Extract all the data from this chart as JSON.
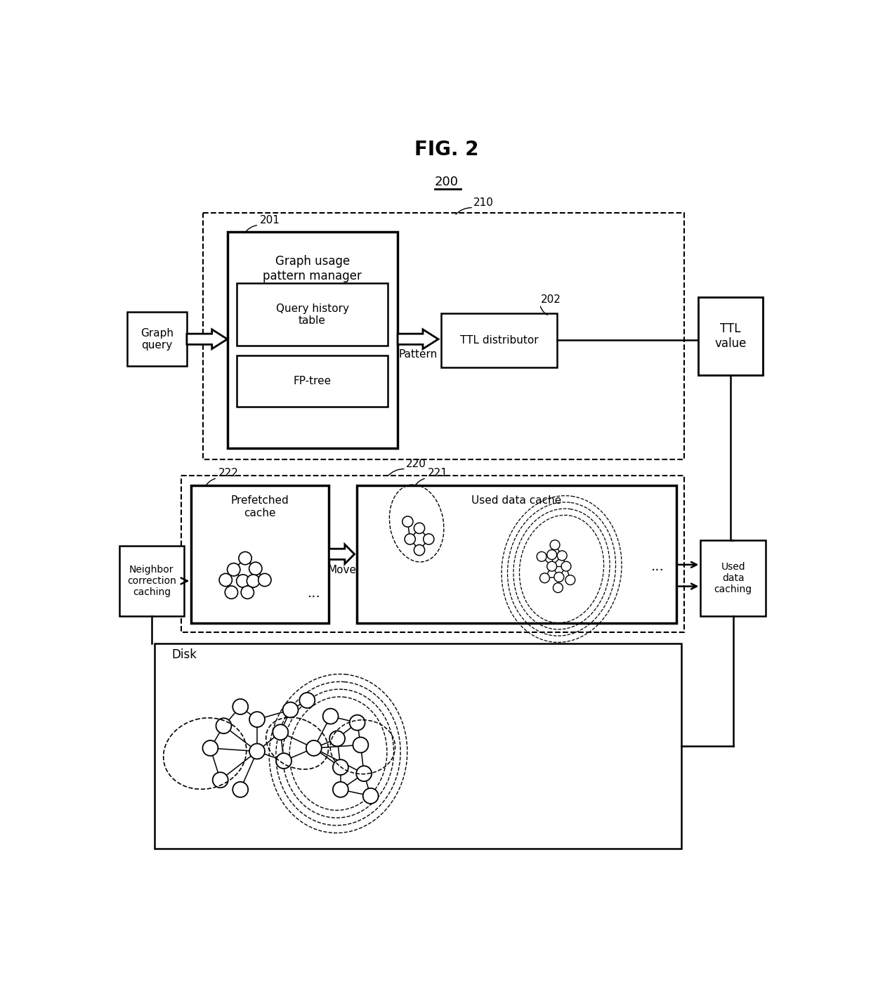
{
  "title": "FIG. 2",
  "ref_200": "200",
  "ref_210": "210",
  "ref_201": "201",
  "ref_202": "202",
  "ref_220": "220",
  "ref_221": "221",
  "ref_222": "222",
  "label_graph_query": "Graph\nquery",
  "label_graph_usage": "Graph usage\npattern manager",
  "label_query_history": "Query history\ntable",
  "label_fp_tree": "FP-tree",
  "label_pattern": "Pattern",
  "label_ttl_dist": "TTL distributor",
  "label_ttl_value": "TTL\nvalue",
  "label_prefetched": "Prefetched\ncache",
  "label_move": "Move",
  "label_used_data": "Used data cache",
  "label_used_data_caching": "Used\ndata\ncaching",
  "label_neighbor": "Neighbor\ncorrection\ncaching",
  "label_disk": "Disk",
  "bg_color": "#ffffff",
  "line_color": "#000000"
}
